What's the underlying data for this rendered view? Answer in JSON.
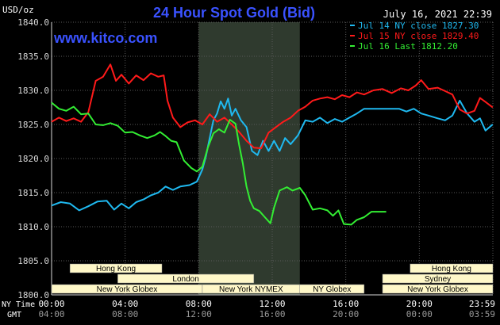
{
  "header": {
    "title": "24 Hour Spot Gold (Bid)",
    "date": "July 16, 2021 22:39",
    "site": "www.kitco.com",
    "unit": "USD/oz"
  },
  "colors": {
    "background": "#000000",
    "plot_bg": "#000000",
    "shade": "#2f3a2e",
    "grid": "#5a5a5a",
    "title": "#3a52ff",
    "site": "#3a52ff",
    "text": "#ffffff",
    "axis_text": "#d8d8d8",
    "gmt_text": "#9a9a9a",
    "session_bg": "#fff8c8",
    "session_text": "#000000",
    "cyan": "#1fb9f0",
    "red": "#ff1a1a",
    "green": "#33ee33"
  },
  "axis_labels": {
    "ny": "NY Time",
    "gmt": "GMT"
  },
  "chart_data": {
    "type": "line",
    "title": "24 Hour Spot Gold (Bid)",
    "ylabel": "USD/oz",
    "ylim": [
      1800,
      1840
    ],
    "yticks": [
      "1840.0",
      "1835.0",
      "1830.0",
      "1825.0",
      "1820.0",
      "1815.0",
      "1810.0",
      "1805.0",
      "1800.0"
    ],
    "ytick_values": [
      1840,
      1835,
      1830,
      1825,
      1820,
      1815,
      1810,
      1805,
      1800
    ],
    "xlim": [
      0,
      24
    ],
    "xticks_ny": [
      "00:00",
      "04:00",
      "08:00",
      "12:00",
      "16:00",
      "20:00",
      "23:59"
    ],
    "xticks_gmt": [
      "04:00",
      "08:00",
      "12:00",
      "16:00",
      "20:00",
      "00:00",
      "03:59"
    ],
    "xtick_hours": [
      0,
      4,
      8,
      12,
      16,
      20,
      24
    ],
    "grid": true,
    "shaded_range": [
      8,
      13.5
    ],
    "legend_position": "top-right",
    "series": [
      {
        "name": "Jul 14 NY close 1827.30",
        "color_key": "cyan",
        "points": [
          [
            0,
            1813.1
          ],
          [
            0.5,
            1813.6
          ],
          [
            1,
            1813.4
          ],
          [
            1.5,
            1812.4
          ],
          [
            2,
            1813.0
          ],
          [
            2.5,
            1813.7
          ],
          [
            3,
            1813.8
          ],
          [
            3.4,
            1812.5
          ],
          [
            3.8,
            1813.4
          ],
          [
            4.2,
            1812.7
          ],
          [
            4.6,
            1813.6
          ],
          [
            5,
            1814.0
          ],
          [
            5.4,
            1814.6
          ],
          [
            5.8,
            1815.0
          ],
          [
            6.2,
            1815.9
          ],
          [
            6.6,
            1815.4
          ],
          [
            7,
            1815.9
          ],
          [
            7.5,
            1816.1
          ],
          [
            7.9,
            1816.6
          ],
          [
            8.2,
            1818.4
          ],
          [
            8.4,
            1820.4
          ],
          [
            8.6,
            1823.0
          ],
          [
            8.8,
            1825.6
          ],
          [
            9,
            1826.6
          ],
          [
            9.2,
            1828.4
          ],
          [
            9.4,
            1827.3
          ],
          [
            9.6,
            1828.8
          ],
          [
            9.8,
            1826.3
          ],
          [
            10,
            1827.3
          ],
          [
            10.3,
            1825.6
          ],
          [
            10.6,
            1824.6
          ],
          [
            10.9,
            1821.1
          ],
          [
            11.2,
            1820.5
          ],
          [
            11.5,
            1822.6
          ],
          [
            11.8,
            1821.1
          ],
          [
            12.1,
            1822.6
          ],
          [
            12.4,
            1821.1
          ],
          [
            12.7,
            1823.0
          ],
          [
            13,
            1822.1
          ],
          [
            13.4,
            1823.4
          ],
          [
            13.8,
            1825.6
          ],
          [
            14.2,
            1825.4
          ],
          [
            14.6,
            1826.0
          ],
          [
            15,
            1825.2
          ],
          [
            15.4,
            1825.8
          ],
          [
            15.8,
            1825.4
          ],
          [
            16.2,
            1826.0
          ],
          [
            16.6,
            1826.6
          ],
          [
            17,
            1827.3
          ],
          [
            17.5,
            1827.3
          ],
          [
            18,
            1827.3
          ],
          [
            18.5,
            1827.3
          ],
          [
            18.9,
            1827.3
          ],
          [
            19.3,
            1826.9
          ],
          [
            19.7,
            1827.3
          ],
          [
            20.1,
            1826.6
          ],
          [
            20.5,
            1826.3
          ],
          [
            21,
            1825.9
          ],
          [
            21.4,
            1825.6
          ],
          [
            21.8,
            1826.3
          ],
          [
            22.2,
            1828.5
          ],
          [
            22.6,
            1826.6
          ],
          [
            23,
            1825.4
          ],
          [
            23.3,
            1825.9
          ],
          [
            23.6,
            1824.1
          ],
          [
            23.99,
            1825.0
          ]
        ]
      },
      {
        "name": "Jul 15 NY close 1829.40",
        "color_key": "red",
        "points": [
          [
            0,
            1825.4
          ],
          [
            0.4,
            1826.0
          ],
          [
            0.8,
            1825.5
          ],
          [
            1.2,
            1825.9
          ],
          [
            1.6,
            1825.4
          ],
          [
            2,
            1826.8
          ],
          [
            2.4,
            1831.4
          ],
          [
            2.8,
            1832.0
          ],
          [
            3.2,
            1833.8
          ],
          [
            3.5,
            1831.4
          ],
          [
            3.8,
            1832.3
          ],
          [
            4.2,
            1831.0
          ],
          [
            4.6,
            1832.2
          ],
          [
            5,
            1831.5
          ],
          [
            5.4,
            1832.5
          ],
          [
            5.8,
            1832.0
          ],
          [
            6.1,
            1832.2
          ],
          [
            6.3,
            1828.5
          ],
          [
            6.6,
            1826.0
          ],
          [
            7,
            1824.6
          ],
          [
            7.4,
            1825.3
          ],
          [
            7.8,
            1825.6
          ],
          [
            8.2,
            1825.0
          ],
          [
            8.6,
            1826.5
          ],
          [
            9,
            1825.4
          ],
          [
            9.4,
            1826.0
          ],
          [
            9.8,
            1825.0
          ],
          [
            10.2,
            1823.9
          ],
          [
            10.6,
            1822.6
          ],
          [
            11,
            1821.6
          ],
          [
            11.4,
            1821.5
          ],
          [
            11.8,
            1823.8
          ],
          [
            12.2,
            1824.6
          ],
          [
            12.6,
            1825.4
          ],
          [
            13,
            1826.0
          ],
          [
            13.4,
            1827.0
          ],
          [
            13.8,
            1827.6
          ],
          [
            14.2,
            1828.5
          ],
          [
            14.6,
            1828.8
          ],
          [
            15,
            1829.0
          ],
          [
            15.4,
            1828.7
          ],
          [
            15.8,
            1829.3
          ],
          [
            16.2,
            1829.0
          ],
          [
            16.6,
            1829.7
          ],
          [
            17,
            1829.4
          ],
          [
            17.5,
            1830.0
          ],
          [
            18,
            1830.2
          ],
          [
            18.5,
            1829.6
          ],
          [
            19,
            1830.3
          ],
          [
            19.4,
            1830.0
          ],
          [
            19.8,
            1830.7
          ],
          [
            20.1,
            1831.5
          ],
          [
            20.5,
            1830.2
          ],
          [
            21,
            1830.4
          ],
          [
            21.4,
            1829.9
          ],
          [
            21.8,
            1829.4
          ],
          [
            22.2,
            1827.2
          ],
          [
            22.6,
            1826.6
          ],
          [
            23,
            1827.0
          ],
          [
            23.3,
            1828.9
          ],
          [
            23.6,
            1828.3
          ],
          [
            23.99,
            1827.5
          ]
        ]
      },
      {
        "name": "Jul 16 Last 1812.20",
        "color_key": "green",
        "points": [
          [
            0,
            1828.2
          ],
          [
            0.4,
            1827.3
          ],
          [
            0.8,
            1827.0
          ],
          [
            1.2,
            1827.6
          ],
          [
            1.6,
            1826.5
          ],
          [
            2,
            1826.6
          ],
          [
            2.4,
            1825.0
          ],
          [
            2.8,
            1824.9
          ],
          [
            3.2,
            1825.2
          ],
          [
            3.6,
            1824.8
          ],
          [
            4,
            1823.8
          ],
          [
            4.4,
            1823.9
          ],
          [
            4.8,
            1823.4
          ],
          [
            5.2,
            1823.0
          ],
          [
            5.6,
            1823.4
          ],
          [
            5.9,
            1823.9
          ],
          [
            6.2,
            1823.3
          ],
          [
            6.5,
            1822.6
          ],
          [
            6.8,
            1822.4
          ],
          [
            7.2,
            1819.7
          ],
          [
            7.6,
            1818.6
          ],
          [
            7.9,
            1818.1
          ],
          [
            8.2,
            1818.8
          ],
          [
            8.5,
            1821.6
          ],
          [
            8.8,
            1823.7
          ],
          [
            9.1,
            1824.3
          ],
          [
            9.4,
            1823.8
          ],
          [
            9.7,
            1825.7
          ],
          [
            10,
            1825.1
          ],
          [
            10.2,
            1822.0
          ],
          [
            10.4,
            1819.3
          ],
          [
            10.6,
            1815.9
          ],
          [
            10.8,
            1813.8
          ],
          [
            11,
            1812.7
          ],
          [
            11.3,
            1812.3
          ],
          [
            11.6,
            1811.4
          ],
          [
            11.9,
            1810.5
          ],
          [
            12.1,
            1812.8
          ],
          [
            12.4,
            1815.3
          ],
          [
            12.8,
            1815.8
          ],
          [
            13.1,
            1815.3
          ],
          [
            13.5,
            1815.7
          ],
          [
            13.8,
            1814.6
          ],
          [
            14.2,
            1812.5
          ],
          [
            14.6,
            1812.7
          ],
          [
            15,
            1812.4
          ],
          [
            15.3,
            1811.6
          ],
          [
            15.6,
            1812.4
          ],
          [
            15.9,
            1810.4
          ],
          [
            16.3,
            1810.3
          ],
          [
            16.6,
            1811.0
          ],
          [
            17,
            1811.4
          ],
          [
            17.4,
            1812.2
          ],
          [
            17.8,
            1812.2
          ],
          [
            18.2,
            1812.2
          ]
        ]
      }
    ]
  },
  "sessions": [
    {
      "label": "Hong Kong",
      "row": 0,
      "start": 1.0,
      "end": 6.0
    },
    {
      "label": "London",
      "row": 1,
      "start": 3.6,
      "end": 11.0
    },
    {
      "label": "New York Globex",
      "row": 2,
      "start": 0.0,
      "end": 8.2
    },
    {
      "label": "New York NYMEX",
      "row": 2,
      "start": 8.2,
      "end": 13.5
    },
    {
      "label": "NY Globex",
      "row": 2,
      "start": 13.5,
      "end": 17.0
    },
    {
      "label": "Hong Kong",
      "row": 0,
      "start": 19.5,
      "end": 24.0
    },
    {
      "label": "Sydney",
      "row": 1,
      "start": 18.0,
      "end": 24.0
    },
    {
      "label": "New York Globex",
      "row": 2,
      "start": 18.0,
      "end": 24.0
    }
  ]
}
